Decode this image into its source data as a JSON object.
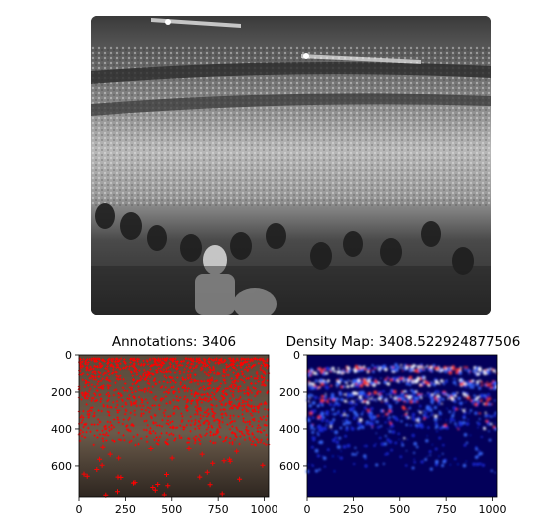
{
  "photo": {
    "icon": "concert-crowd-grayscale-photo"
  },
  "chart_data": [
    {
      "type": "scatter",
      "title": "Annotations: 3406",
      "xlabel": "",
      "ylabel": "",
      "xlim": [
        0,
        1024
      ],
      "ylim": [
        768,
        0
      ],
      "xticks": [
        0,
        250,
        500,
        750,
        1000
      ],
      "yticks": [
        0,
        200,
        400,
        600
      ],
      "background": "crowd-photo-color",
      "marker": "+",
      "marker_color": "#ff0000",
      "count": 3406,
      "grid": false,
      "legend": "none"
    },
    {
      "type": "heatmap",
      "title": "Density Map: 3408.522924877506",
      "xlabel": "",
      "ylabel": "",
      "xlim": [
        0,
        1024
      ],
      "ylim": [
        768,
        0
      ],
      "xticks": [
        0,
        250,
        500,
        750,
        1000
      ],
      "yticks": [
        0,
        200,
        400,
        600
      ],
      "colormap": "seismic",
      "total": 3408.522924877506,
      "grid": false,
      "legend": "none"
    }
  ]
}
